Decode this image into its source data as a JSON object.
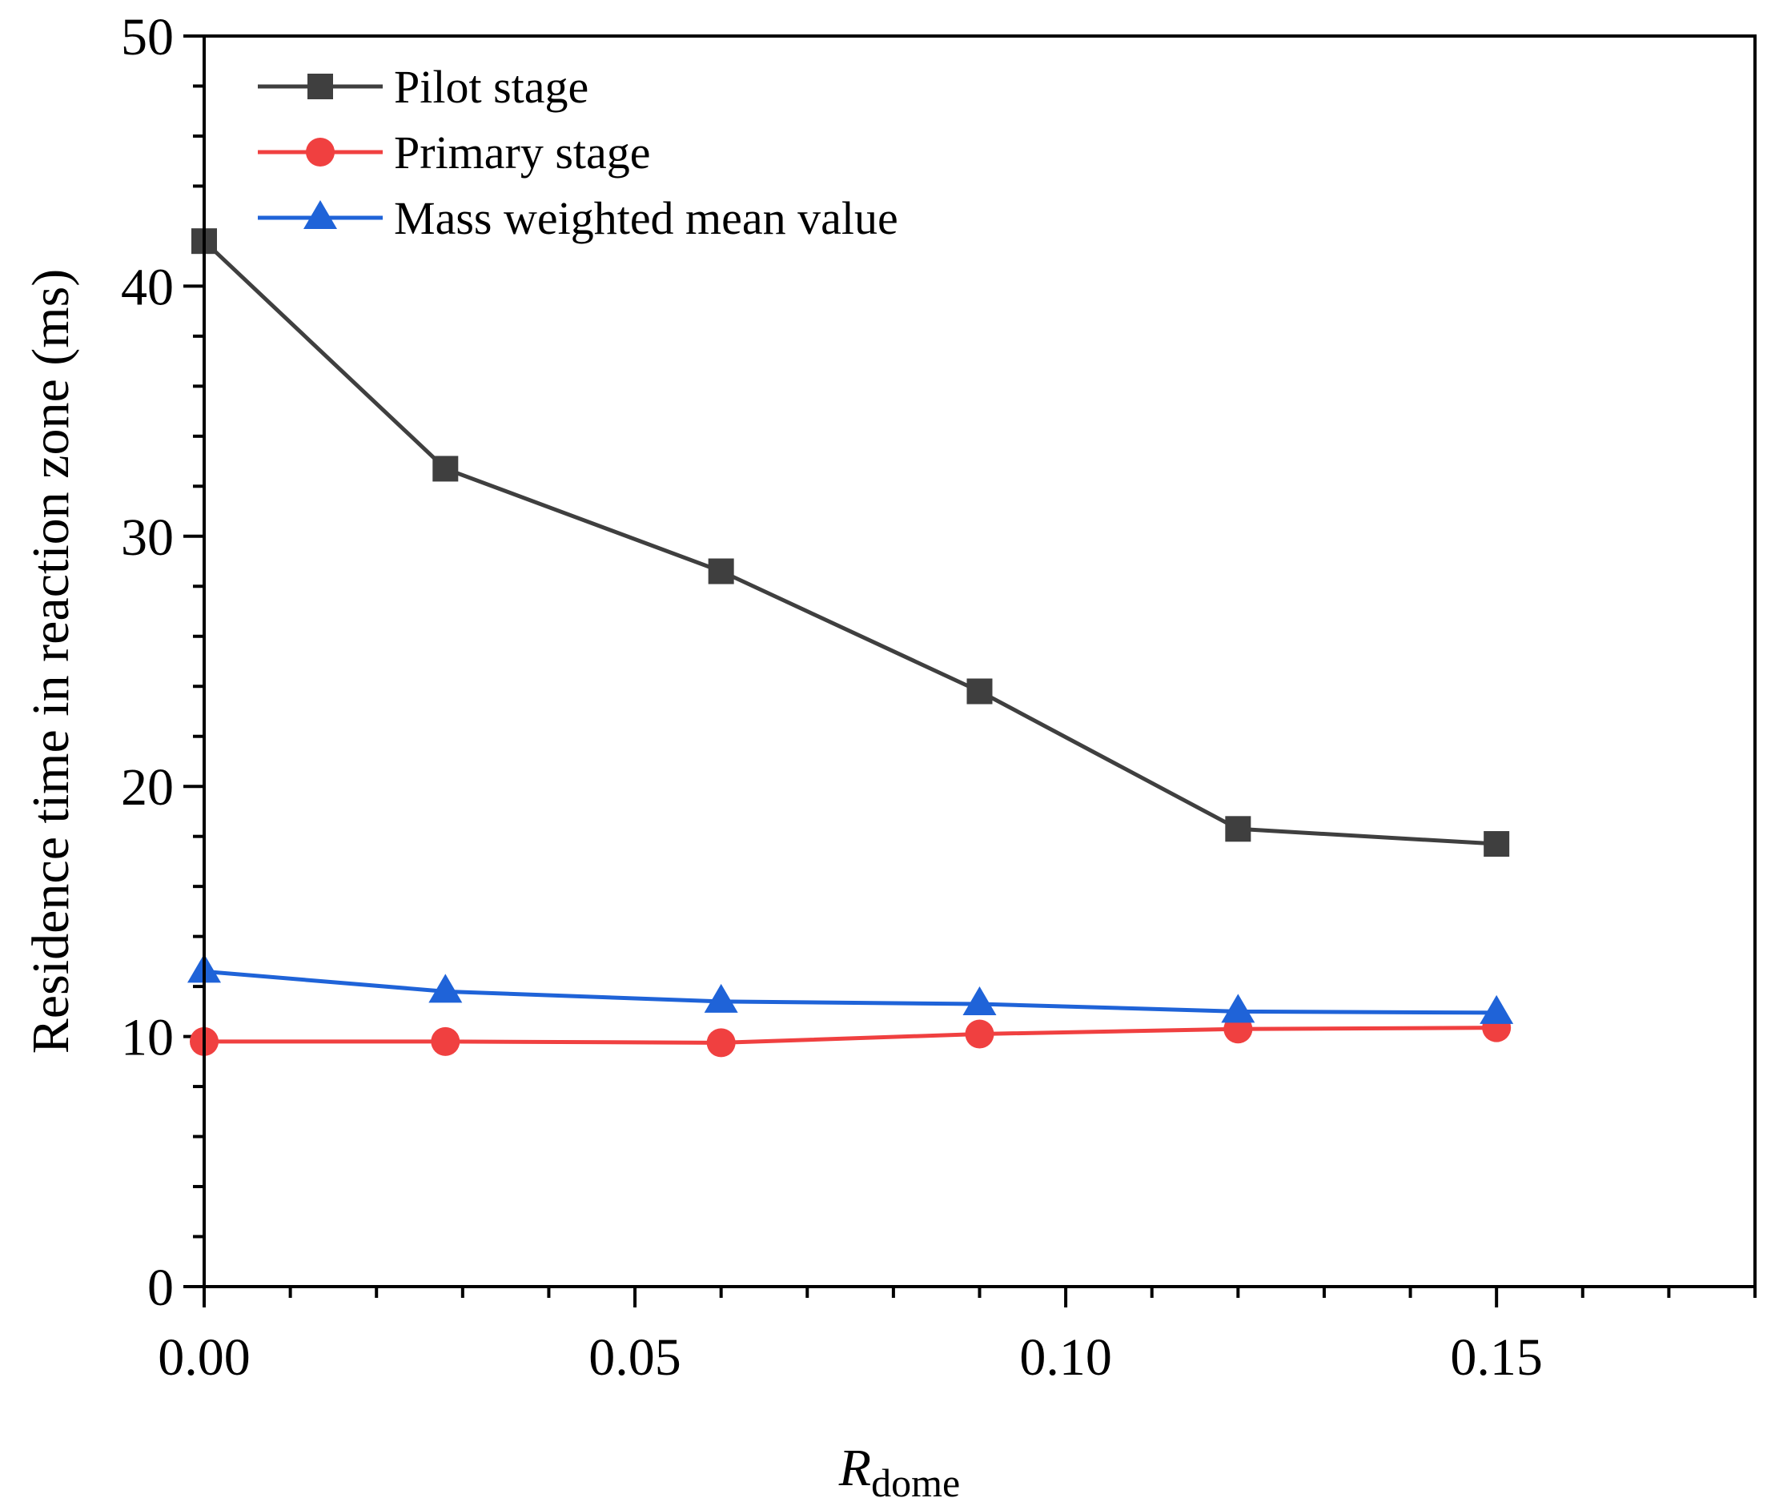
{
  "chart_data": {
    "type": "line",
    "title": "",
    "xlabel": {
      "main": "R",
      "sub": "dome"
    },
    "ylabel": "Residence time in reaction zone (ms)",
    "xlim": [
      0,
      0.18
    ],
    "ylim": [
      0,
      50
    ],
    "x_major_ticks": [
      0.0,
      0.05,
      0.1,
      0.15
    ],
    "x_tick_labels": [
      "0.00",
      "0.05",
      "0.10",
      "0.15"
    ],
    "x_minor_step": 0.01,
    "y_major_ticks": [
      0,
      10,
      20,
      30,
      40,
      50
    ],
    "y_tick_labels": [
      "0",
      "10",
      "20",
      "30",
      "40",
      "50"
    ],
    "y_minor_step": 2,
    "grid": false,
    "legend_position": "top-left",
    "x": [
      0.0,
      0.028,
      0.06,
      0.09,
      0.12,
      0.15
    ],
    "series": [
      {
        "name": "Pilot stage",
        "marker": "square",
        "color": "#3f3f3f",
        "values": [
          41.8,
          32.7,
          28.6,
          23.8,
          18.3,
          17.7
        ]
      },
      {
        "name": "Primary stage",
        "marker": "circle",
        "color": "#f04040",
        "values": [
          9.8,
          9.8,
          9.75,
          10.1,
          10.3,
          10.35
        ]
      },
      {
        "name": "Mass weighted mean value",
        "marker": "triangle",
        "color": "#1f63d8",
        "values": [
          12.6,
          11.8,
          11.4,
          11.3,
          11.0,
          10.95
        ]
      }
    ]
  }
}
